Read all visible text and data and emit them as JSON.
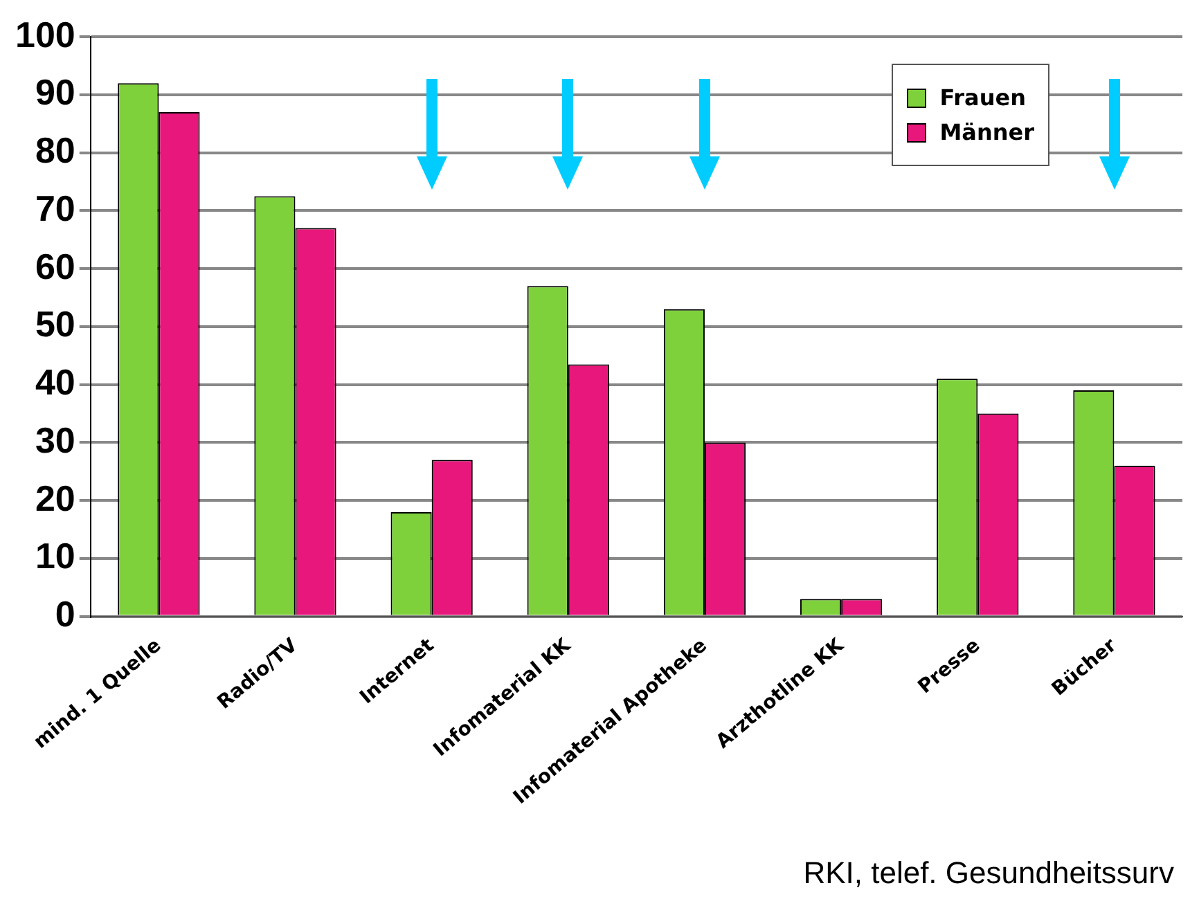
{
  "chart_data": {
    "type": "bar",
    "categories": [
      "mind. 1 Quelle",
      "Radio/TV",
      "Internet",
      "Infomaterial KK",
      "Infomaterial Apotheke",
      "Arzthotline KK",
      "Presse",
      "Bücher"
    ],
    "series": [
      {
        "name": "Frauen",
        "color": "#7fd13b",
        "values": [
          92,
          72.5,
          18,
          57,
          53,
          3,
          41,
          39
        ]
      },
      {
        "name": "Männer",
        "color": "#e8177b",
        "values": [
          87,
          67,
          27,
          43.5,
          30,
          3,
          35,
          26
        ]
      }
    ],
    "ylim": [
      0,
      100
    ],
    "yticks": [
      0,
      10,
      20,
      30,
      40,
      50,
      60,
      70,
      80,
      90,
      100
    ],
    "grid": "y",
    "legend": "top right",
    "annotations": [
      "RKI, telef. Gesundheitssurv"
    ]
  }
}
